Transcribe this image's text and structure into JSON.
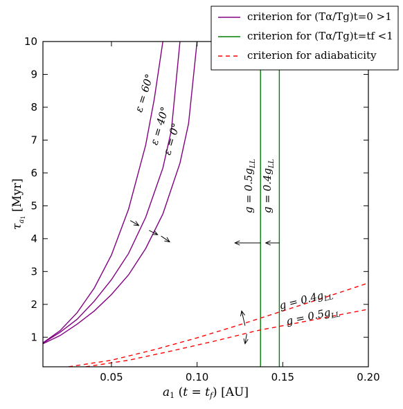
{
  "chart_data": {
    "type": "line",
    "xlabel": "a₁ (t = t_f) [AU]",
    "ylabel": "τ_a₁ [Myr]",
    "xlim": [
      0.01,
      0.2
    ],
    "ylim": [
      0.1,
      10
    ],
    "x_ticks": [
      0.05,
      0.1,
      0.15,
      0.2
    ],
    "x_tick_labels": [
      "0.05",
      "0.10",
      "0.15",
      "0.20"
    ],
    "y_ticks": [
      1,
      2,
      3,
      4,
      5,
      6,
      7,
      8,
      9,
      10
    ],
    "y_tick_labels": [
      "1",
      "2",
      "3",
      "4",
      "5",
      "6",
      "7",
      "8",
      "9",
      "10"
    ],
    "grid": false,
    "legend": {
      "placement": "top-right",
      "entries": [
        {
          "label": "criterion for (Tα/Tg)t=0 >1",
          "color": "#800080",
          "style": "solid"
        },
        {
          "label": "criterion for (Tα/Tg)t=tf <1",
          "color": "#008000",
          "style": "solid"
        },
        {
          "label": "criterion for adiabaticity",
          "color": "#ff0000",
          "style": "dashed"
        }
      ]
    },
    "series": [
      {
        "label": "ε = 60°",
        "color": "#800080",
        "style": "solid",
        "x": [
          0.01,
          0.02,
          0.03,
          0.04,
          0.05,
          0.06,
          0.07,
          0.075,
          0.08
        ],
        "y": [
          0.83,
          1.2,
          1.75,
          2.5,
          3.5,
          4.9,
          6.85,
          8.25,
          10
        ]
      },
      {
        "label": "ε = 40°",
        "color": "#800080",
        "style": "solid",
        "x": [
          0.01,
          0.02,
          0.03,
          0.04,
          0.05,
          0.06,
          0.07,
          0.08,
          0.085,
          0.09
        ],
        "y": [
          0.82,
          1.15,
          1.55,
          2.1,
          2.75,
          3.55,
          4.65,
          6.15,
          7.3,
          10
        ]
      },
      {
        "label": "ε = 0°",
        "color": "#800080",
        "style": "solid",
        "x": [
          0.01,
          0.02,
          0.03,
          0.04,
          0.05,
          0.06,
          0.07,
          0.08,
          0.09,
          0.095,
          0.1
        ],
        "y": [
          0.8,
          1.05,
          1.4,
          1.8,
          2.3,
          2.9,
          3.7,
          4.75,
          6.3,
          7.5,
          10
        ]
      },
      {
        "label": "g = 0.5g_LL",
        "color": "#008000",
        "style": "solid",
        "x": [
          0.137,
          0.137
        ],
        "y": [
          0.1,
          10
        ]
      },
      {
        "label": "g = 0.4g_LL",
        "color": "#008000",
        "style": "solid",
        "x": [
          0.148,
          0.148
        ],
        "y": [
          0.1,
          10
        ]
      },
      {
        "label": "g = 0.4g_LL",
        "color": "#ff0000",
        "style": "dashed",
        "x": [
          0.025,
          0.05,
          0.075,
          0.1,
          0.125,
          0.15,
          0.175,
          0.2
        ],
        "y": [
          0.1,
          0.3,
          0.62,
          0.98,
          1.38,
          1.8,
          2.22,
          2.65
        ]
      },
      {
        "label": "g = 0.5g_LL",
        "color": "#ff0000",
        "style": "dashed",
        "x": [
          0.035,
          0.06,
          0.085,
          0.11,
          0.135,
          0.16,
          0.185,
          0.2
        ],
        "y": [
          0.1,
          0.3,
          0.58,
          0.88,
          1.2,
          1.45,
          1.7,
          1.85
        ]
      }
    ],
    "annotations": [
      {
        "text": "ε = 60°",
        "x": 0.071,
        "y": 8.4,
        "rotation": -73
      },
      {
        "text": "ε = 40°",
        "x": 0.08,
        "y": 7.4,
        "rotation": -73
      },
      {
        "text": "ε = 0°",
        "x": 0.087,
        "y": 7.0,
        "rotation": -73
      },
      {
        "text": "g = 0.5g_LL",
        "x": 0.132,
        "y": 5.6,
        "rotation": -90
      },
      {
        "text": "g = 0.4g_LL",
        "x": 0.143,
        "y": 5.6,
        "rotation": -90
      },
      {
        "text": "g = 0.4g_LL",
        "x": 0.164,
        "y": 2.05,
        "rotation": -14
      },
      {
        "text": "g = 0.5g_LL",
        "x": 0.168,
        "y": 1.55,
        "rotation": -12
      }
    ],
    "arrows": [
      {
        "from": [
          0.061,
          4.55
        ],
        "to": [
          0.066,
          4.4
        ]
      },
      {
        "from": [
          0.072,
          4.25
        ],
        "to": [
          0.077,
          4.12
        ]
      },
      {
        "from": [
          0.079,
          4.08
        ],
        "to": [
          0.084,
          3.9
        ]
      },
      {
        "from": [
          0.137,
          3.87
        ],
        "to": [
          0.122,
          3.87
        ]
      },
      {
        "from": [
          0.148,
          3.87
        ],
        "to": [
          0.14,
          3.87
        ]
      },
      {
        "from": [
          0.128,
          1.35
        ],
        "to": [
          0.126,
          1.8
        ]
      },
      {
        "from": [
          0.129,
          1.1
        ],
        "to": [
          0.128,
          0.8
        ]
      }
    ]
  }
}
